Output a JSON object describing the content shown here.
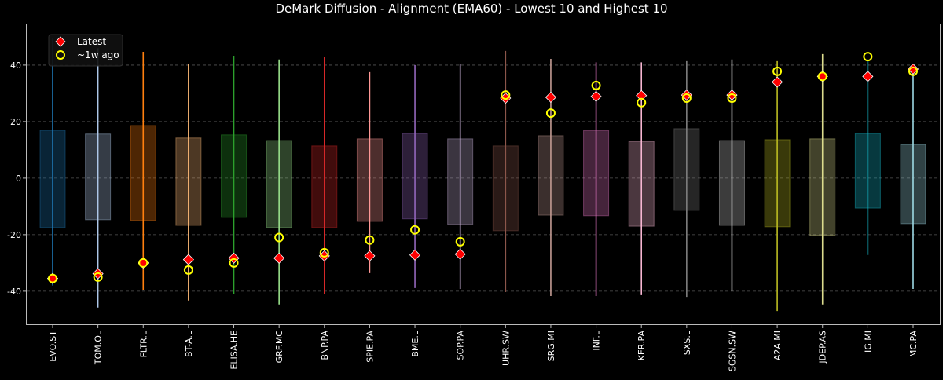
{
  "chart_data": {
    "type": "box",
    "title": "DeMark Diffusion - Alignment (EMA60) - Lowest 10 and Highest 10",
    "xlabel": "",
    "ylabel": "",
    "ylim": [
      -51.7,
      54.7
    ],
    "yticks": [
      -40,
      -20,
      0,
      20,
      40
    ],
    "grid": "y dashed",
    "legend": {
      "placement": "top-left",
      "entries": [
        {
          "label": "Latest",
          "marker": "red diamond",
          "color": "#ff0000"
        },
        {
          "label": "~1w ago",
          "marker": "hollow circle",
          "color": "#ffff00"
        }
      ]
    },
    "categories": [
      "EVO.ST",
      "TOM.OL",
      "FLTR.L",
      "BT-A.L",
      "ELISA.HE",
      "GRF.MC",
      "BNP.PA",
      "SPIE.PA",
      "BME.L",
      "SOP.PA",
      "UHR.SW",
      "SRG.MI",
      "INF.L",
      "KER.PA",
      "SXS.L",
      "SGSN.SW",
      "A2A.MI",
      "JDEP.AS",
      "IG.MI",
      "MC.PA"
    ],
    "colors": [
      "#1f77b4",
      "#aec7e8",
      "#ff7f0e",
      "#ffbb78",
      "#2ca02c",
      "#98df8a",
      "#d62728",
      "#ff9896",
      "#9467bd",
      "#c5b0d5",
      "#8c564b",
      "#c49c94",
      "#e377c2",
      "#f7b6d2",
      "#7f7f7f",
      "#c7c7c7",
      "#bcbd22",
      "#dbdb8d",
      "#17becf",
      "#9edae5"
    ],
    "whisker_high": [
      49.4,
      46,
      44.7,
      40.5,
      43.3,
      42,
      42.8,
      37.5,
      40,
      40.3,
      45,
      42.2,
      41,
      41,
      41.4,
      42,
      41.4,
      43.9,
      42,
      39.7
    ],
    "whisker_low": [
      -38,
      -45.8,
      -39.7,
      -43.3,
      -41,
      -44.7,
      -41,
      -33.6,
      -38.9,
      -39.2,
      -40.3,
      -41.7,
      -41.7,
      -41.4,
      -42,
      -40,
      -47,
      -44.7,
      -27.2,
      -39.2
    ],
    "box_high": [
      16.9,
      15.6,
      18.6,
      14.2,
      15.3,
      13.3,
      11.4,
      13.9,
      15.8,
      13.9,
      11.4,
      15,
      16.9,
      13,
      17.5,
      13.3,
      13.6,
      13.9,
      15.8,
      11.9
    ],
    "box_low": [
      -17.5,
      -14.7,
      -15,
      -16.7,
      -13.9,
      -17.5,
      -17.5,
      -15.3,
      -14.4,
      -16.4,
      -18.6,
      -13.1,
      -13.3,
      -17,
      -11.4,
      -16.7,
      -17.2,
      -20.3,
      -10.6,
      -16.1
    ],
    "latest": [
      -35.5,
      -33.8,
      -30,
      -28.8,
      -28.3,
      -28.3,
      -27.5,
      -27.5,
      -27.2,
      -26.9,
      28.3,
      28.6,
      28.9,
      29.2,
      29.4,
      29.4,
      34,
      36,
      36,
      38.6
    ],
    "week_ago": [
      -35.5,
      -35,
      -30,
      -32.5,
      -30,
      -21,
      -26.4,
      -21.9,
      -18.3,
      -22.5,
      29.4,
      23,
      32.8,
      26.7,
      28.3,
      28.3,
      37.8,
      36,
      43,
      37.8
    ]
  }
}
